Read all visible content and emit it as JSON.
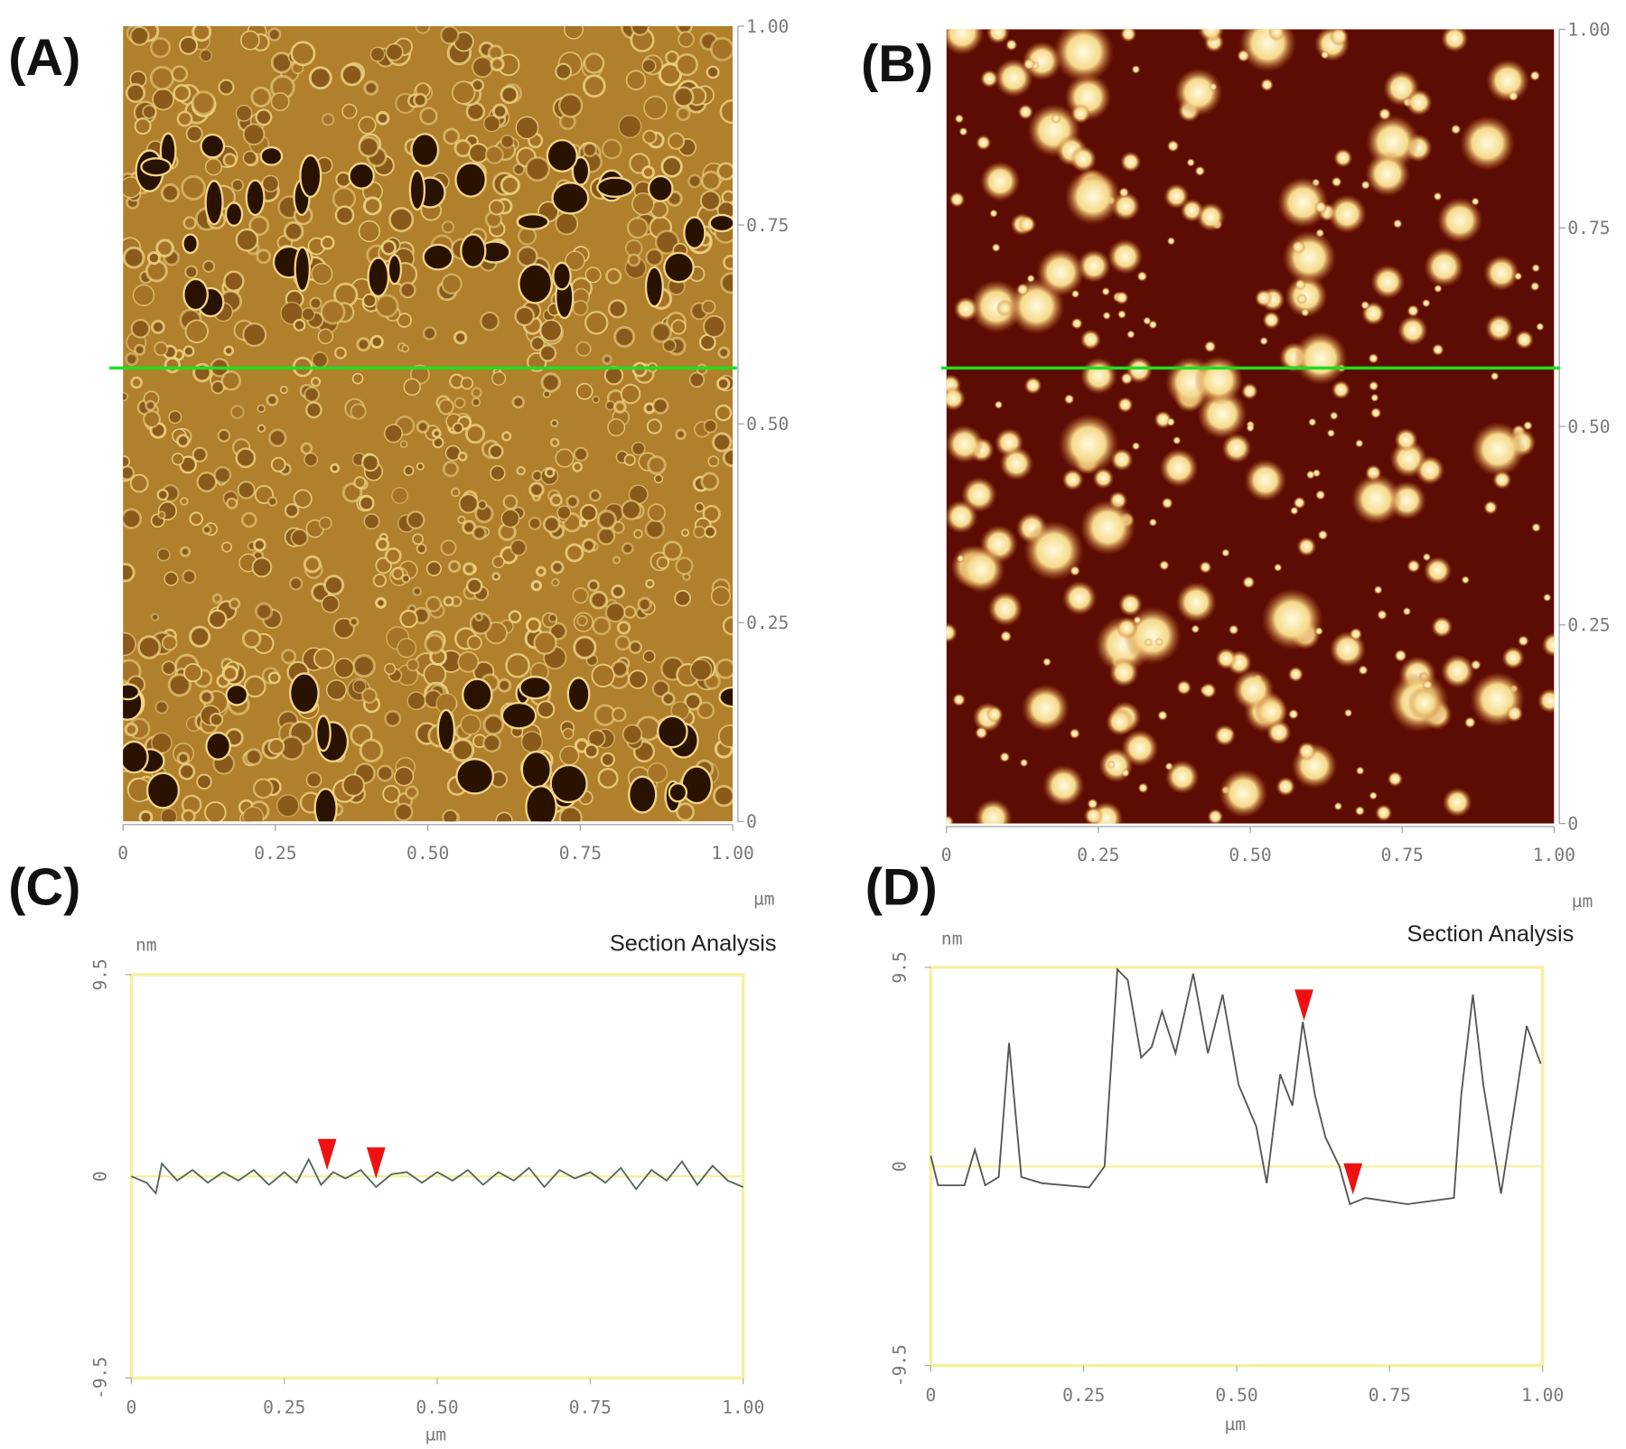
{
  "chart_data": [
    {
      "type": "image",
      "panel_label": "(A)",
      "x_label": "µm",
      "xlim": [
        0,
        1
      ],
      "ylim": [
        0,
        1
      ],
      "xticks": [
        0,
        0.25,
        {
          "value": 0.5,
          "label": "0.50"
        },
        0.75,
        {
          "value": 1,
          "label": "1.00"
        }
      ],
      "yticks": [
        0,
        0.25,
        {
          "value": 0.5,
          "label": "0.50"
        },
        0.75,
        {
          "value": 1,
          "label": "1.00"
        }
      ],
      "colors": [
        "#b0802c",
        "#f2d585",
        "#2a1200"
      ]
    },
    {
      "type": "image",
      "panel_label": "(B)",
      "x_label": "µm",
      "xlim": [
        0,
        1
      ],
      "ylim": [
        0,
        1
      ],
      "xticks": [
        0,
        0.25,
        {
          "value": 0.5,
          "label": "0.50"
        },
        0.75,
        {
          "value": 1,
          "label": "1.00"
        }
      ],
      "yticks": [
        0,
        0.25,
        {
          "value": 0.5,
          "label": "0.50"
        },
        0.75,
        {
          "value": 1,
          "label": "1.00"
        }
      ],
      "colors": [
        "#5c0c02",
        "#fff6c8",
        "#d88a2a"
      ]
    },
    {
      "type": "line",
      "panel_label": "(C)",
      "title": "Section Analysis",
      "x_label": "µm",
      "y_label": "nm",
      "xlim": [
        0,
        1
      ],
      "ylim": [
        -9.5,
        9.5
      ],
      "xticks": [
        0,
        0.25,
        {
          "value": 0.5,
          "label": "0.50"
        },
        0.75,
        {
          "value": 1,
          "label": "1.00"
        }
      ],
      "yticks": [
        9.5,
        0,
        -9.5
      ],
      "color": "#556655",
      "x": [
        0,
        0.025,
        0.04,
        0.05,
        0.075,
        0.1,
        0.125,
        0.15,
        0.175,
        0.2,
        0.225,
        0.25,
        0.27,
        0.29,
        0.31,
        0.33,
        0.35,
        0.375,
        0.4,
        0.425,
        0.45,
        0.475,
        0.5,
        0.525,
        0.55,
        0.575,
        0.6,
        0.625,
        0.65,
        0.675,
        0.7,
        0.725,
        0.75,
        0.775,
        0.8,
        0.825,
        0.85,
        0.875,
        0.9,
        0.925,
        0.95,
        0.975,
        1
      ],
      "values": [
        0,
        -0.3,
        -0.8,
        0.6,
        -0.2,
        0.3,
        -0.3,
        0.2,
        -0.2,
        0.3,
        -0.4,
        0.2,
        -0.3,
        0.8,
        -0.4,
        0.2,
        -0.1,
        0.3,
        -0.5,
        0.1,
        0.2,
        -0.3,
        0.2,
        -0.2,
        0.3,
        -0.4,
        0.2,
        -0.2,
        0.4,
        -0.5,
        0.3,
        -0.1,
        0.2,
        -0.3,
        0.4,
        -0.6,
        0.3,
        -0.2,
        0.7,
        -0.4,
        0.5,
        -0.2,
        -0.5
      ],
      "markers": [
        0.32,
        0.4
      ]
    },
    {
      "type": "line",
      "panel_label": "(D)",
      "title": "Section Analysis",
      "x_label": "µm",
      "y_label": "nm",
      "xlim": [
        0,
        1
      ],
      "ylim": [
        -9.5,
        9.5
      ],
      "xticks": [
        0,
        0.25,
        {
          "value": 0.5,
          "label": "0.50"
        },
        0.75,
        {
          "value": 1,
          "label": "1.00"
        }
      ],
      "yticks": [
        9.5,
        0,
        -9.5
      ],
      "color": "#555555",
      "x": [
        0,
        0.012,
        0.055,
        0.072,
        0.089,
        0.111,
        0.128,
        0.148,
        0.182,
        0.259,
        0.284,
        0.305,
        0.322,
        0.344,
        0.361,
        0.378,
        0.4,
        0.429,
        0.453,
        0.477,
        0.503,
        0.532,
        0.549,
        0.571,
        0.591,
        0.608,
        0.628,
        0.645,
        0.668,
        0.685,
        0.71,
        0.779,
        0.855,
        0.867,
        0.886,
        0.903,
        0.932,
        0.957,
        0.974,
        0.997
      ],
      "values": [
        0.5,
        -0.9,
        -0.9,
        0.8,
        -0.9,
        -0.5,
        5.9,
        -0.5,
        -0.8,
        -1,
        0,
        9.4,
        8.9,
        5.2,
        5.7,
        7.4,
        5.4,
        9.2,
        5.4,
        8.2,
        3.9,
        1.9,
        -0.8,
        4.4,
        2.9,
        6.9,
        3.4,
        1.4,
        0,
        -1.8,
        -1.5,
        -1.8,
        -1.5,
        3.4,
        8.2,
        3.9,
        -1.3,
        3.4,
        6.7,
        4.9
      ],
      "markers": [
        0.61,
        0.69
      ]
    }
  ]
}
